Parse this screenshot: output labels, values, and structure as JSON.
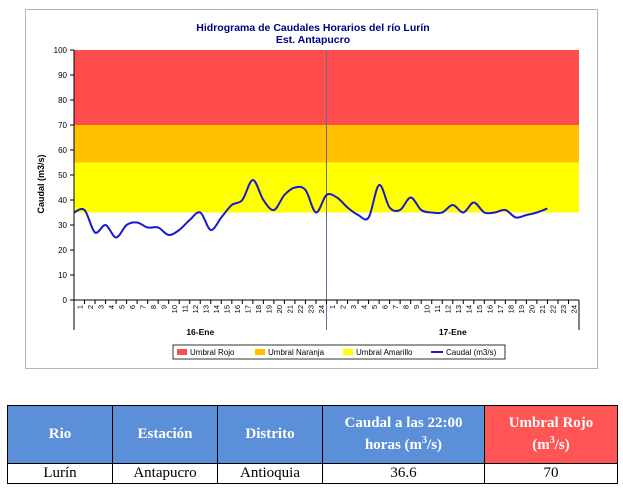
{
  "chart_data": {
    "type": "line",
    "title": "Hidrograma de Caudales Horarios del río Lurín",
    "subtitle": "Est. Antapucro",
    "ylabel": "Caudal (m3/s)",
    "ylim": [
      0,
      100
    ],
    "yticks": [
      0,
      10,
      20,
      30,
      40,
      50,
      60,
      70,
      80,
      90,
      100
    ],
    "x_tick_labels": [
      "1",
      "2",
      "3",
      "4",
      "5",
      "6",
      "7",
      "8",
      "9",
      "10",
      "11",
      "12",
      "13",
      "14",
      "15",
      "16",
      "17",
      "18",
      "19",
      "20",
      "21",
      "22",
      "23",
      "24",
      "1",
      "2",
      "3",
      "4",
      "5",
      "6",
      "7",
      "8",
      "9",
      "10",
      "11",
      "12",
      "13",
      "14",
      "15",
      "16",
      "17",
      "18",
      "19",
      "20",
      "21",
      "22",
      "23",
      "24"
    ],
    "day_labels": [
      "16-Ene",
      "17-Ene"
    ],
    "thresholds": [
      {
        "name": "Umbral Rojo",
        "from": 70,
        "to": 100,
        "color": "#ff4d4d"
      },
      {
        "name": "Umbral Naranja",
        "from": 55,
        "to": 70,
        "color": "#ffc000"
      },
      {
        "name": "Umbral Amarillo",
        "from": 35,
        "to": 55,
        "color": "#ffff00"
      }
    ],
    "series": [
      {
        "name": "Caudal (m3/s)",
        "color": "#1a1acc",
        "values": [
          35,
          36,
          27,
          30,
          25,
          30,
          31,
          29,
          29,
          26,
          28,
          32,
          35,
          28,
          33,
          38,
          40,
          48,
          40,
          36,
          42,
          45,
          44,
          35,
          42,
          41,
          37,
          34,
          33,
          46,
          37,
          36,
          41,
          36,
          35,
          35,
          38,
          35,
          39,
          35,
          35,
          36,
          33,
          34,
          35,
          36.6
        ]
      }
    ],
    "legend_position": "bottom"
  },
  "table": {
    "headers": {
      "rio": "Rio",
      "estacion": "Estación",
      "distrito": "Distrito",
      "caudal": "Caudal a las 22:00 horas (m3/s)",
      "umbral": "Umbral Rojo (m3/s)"
    },
    "row": {
      "rio": "Lurín",
      "estacion": "Antapucro",
      "distrito": "Antioquia",
      "caudal": "36.6",
      "umbral": "70"
    },
    "colors": {
      "header": "#5b8fd8",
      "umbral_header": "#ff5555"
    }
  }
}
